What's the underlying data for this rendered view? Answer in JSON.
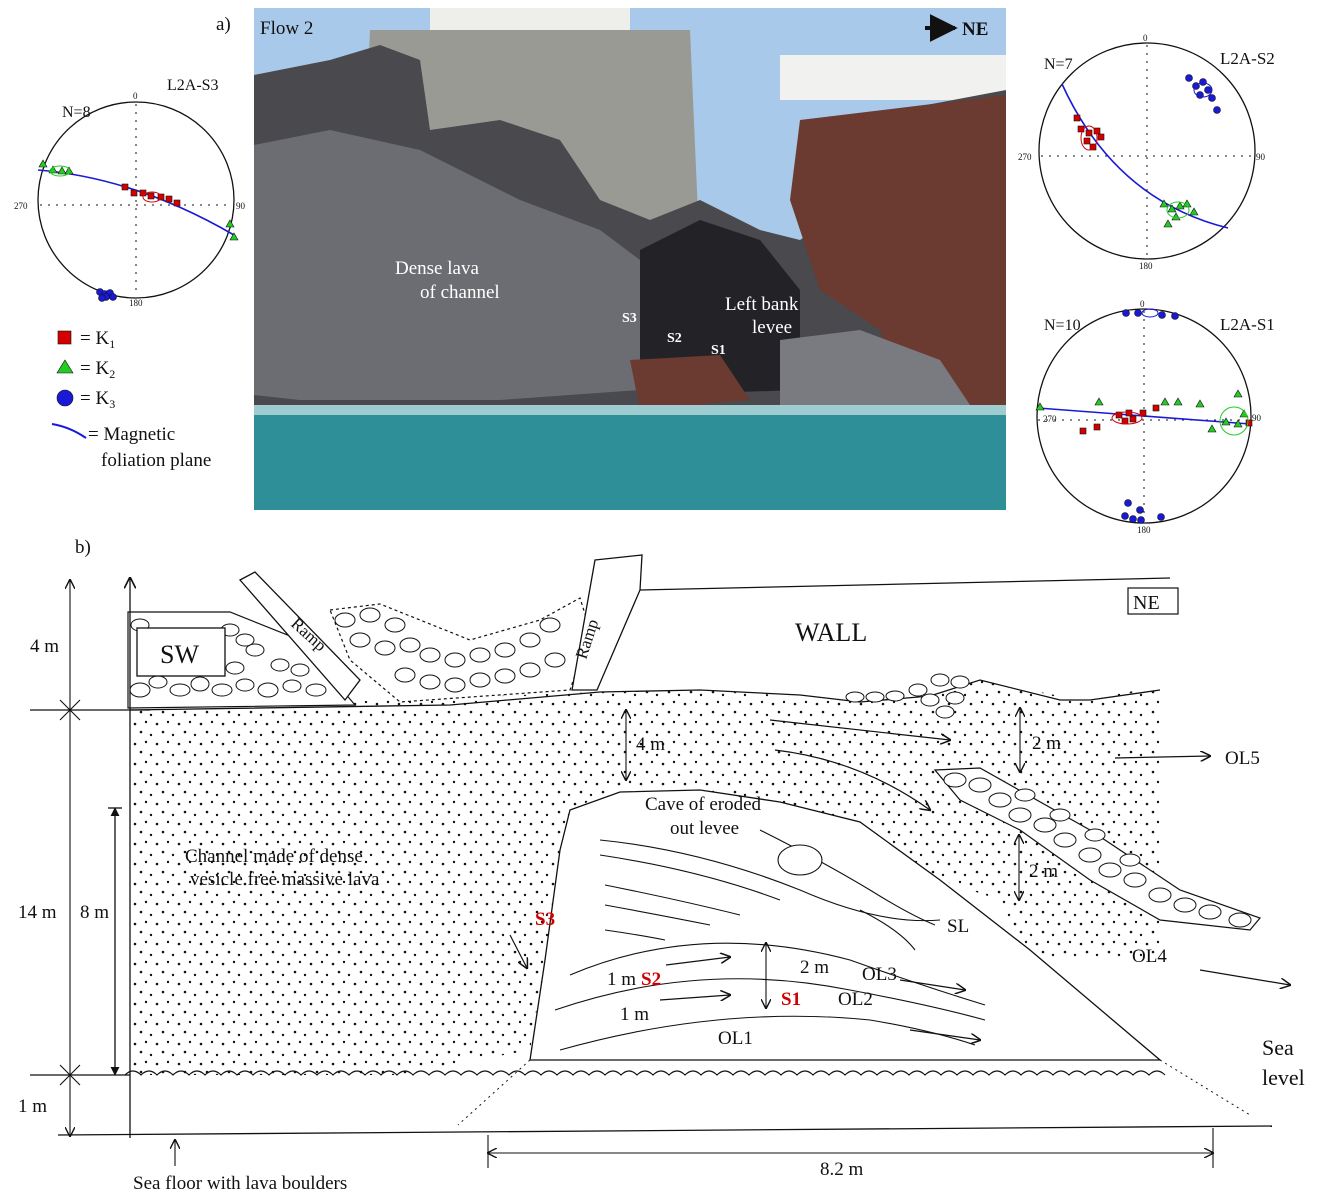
{
  "panel_a": {
    "label": "a)",
    "photo": {
      "title": "Flow 2",
      "direction": "NE",
      "labels": {
        "dense_lava_1": "Dense lava",
        "dense_lava_2": "of channel",
        "levee_1": "Left bank",
        "levee_2": "levee",
        "s1": "S1",
        "s2": "S2",
        "s3": "S3"
      },
      "colors": {
        "sky": "#a9c9ea",
        "rock_dark": "#3b3a3d",
        "rock_grey": "#6c6d72",
        "rock_red": "#6b3a30",
        "sea": "#2f8f98",
        "wall": "#9a9a95"
      }
    },
    "stereonets": [
      {
        "id": "L2A-S3",
        "n_label": "N=8",
        "top": "0",
        "right": "90",
        "bottom": "180",
        "left": "270"
      },
      {
        "id": "L2A-S2",
        "n_label": "N=7",
        "top": "0",
        "right": "90",
        "bottom": "180",
        "left": "270"
      },
      {
        "id": "L2A-S1",
        "n_label": "N=10",
        "top": "0",
        "right": "90",
        "bottom": "180",
        "left": "270"
      }
    ],
    "legend": {
      "k1": "= K",
      "k1_sub": "1",
      "k2": "= K",
      "k2_sub": "2",
      "k3": "= K",
      "k3_sub": "3",
      "plane_1": "= Magnetic",
      "plane_2": "foliation plane",
      "colors": {
        "k1": "#d40000",
        "k2": "#22cc22",
        "k3": "#1a1ad6",
        "plane": "#1a1ad6"
      }
    }
  },
  "panel_b": {
    "label": "b)",
    "heights": {
      "h4": "4 m",
      "h14": "14 m",
      "h8": "8 m",
      "h1": "1 m"
    },
    "labels": {
      "sw": "SW",
      "ne": "NE",
      "wall": "WALL",
      "ramp1": "Ramp",
      "ramp2": "Ramp",
      "channel_1": "Channel made of  dense",
      "channel_2": "vesicle  free massive lava",
      "cave_1": "Cave of eroded",
      "cave_2": "out levee",
      "d4m": "4 m",
      "d2m_a": "2 m",
      "d2m_b": "2 m",
      "d2m_c": "2 m",
      "d1m_a": "1 m",
      "d1m_b": "1 m",
      "ol1": "OL1",
      "ol2": "OL2",
      "ol3": "OL3",
      "ol4": "OL4",
      "ol5": "OL5",
      "sl": "SL",
      "s1": "S1",
      "s2": "S2",
      "s3": "S3",
      "sea_1": "Sea",
      "sea_2": "level",
      "sea_floor": "Sea floor with lava boulders",
      "width": "8.2 m"
    }
  }
}
